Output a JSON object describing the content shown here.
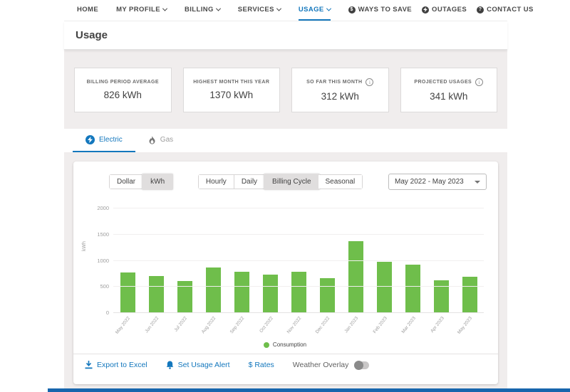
{
  "colors": {
    "accent_blue": "#1377bd",
    "bar_green": "#6fbe4b",
    "bg_gray": "#f0eded",
    "footer_bar_blue": "#1866ad"
  },
  "nav": {
    "items": [
      {
        "label": "HOME",
        "caret": false,
        "active": false
      },
      {
        "label": "MY PROFILE",
        "caret": true,
        "active": false
      },
      {
        "label": "BILLING",
        "caret": true,
        "active": false
      },
      {
        "label": "SERVICES",
        "caret": true,
        "active": false
      },
      {
        "label": "USAGE",
        "caret": true,
        "active": true
      }
    ],
    "utility": [
      {
        "label": "WAYS TO SAVE",
        "icon": "dollar-circle-icon"
      },
      {
        "label": "OUTAGES",
        "icon": "power-circle-icon"
      },
      {
        "label": "CONTACT US",
        "icon": "question-circle-icon"
      }
    ]
  },
  "page": {
    "title": "Usage"
  },
  "stats": [
    {
      "label": "BILLING PERIOD AVERAGE",
      "value": "826 kWh",
      "has_info": false
    },
    {
      "label": "HIGHEST MONTH THIS YEAR",
      "value": "1370 kWh",
      "has_info": false
    },
    {
      "label": "SO FAR THIS MONTH",
      "value": "312 kWh",
      "has_info": true
    },
    {
      "label": "PROJECTED USAGES",
      "value": "341 kWh",
      "has_info": true
    }
  ],
  "fuel_tabs": [
    {
      "label": "Electric",
      "active": true
    },
    {
      "label": "Gas",
      "active": false
    }
  ],
  "controls": {
    "unit_options": [
      {
        "label": "Dollar",
        "selected": false
      },
      {
        "label": "kWh",
        "selected": true
      }
    ],
    "period_options": [
      {
        "label": "Hourly",
        "selected": false
      },
      {
        "label": "Daily",
        "selected": false
      },
      {
        "label": "Billing Cycle",
        "selected": true
      },
      {
        "label": "Seasonal",
        "selected": false
      }
    ],
    "date_range": {
      "value": "May 2022 - May 2023"
    }
  },
  "chart_data": {
    "type": "bar",
    "title": "",
    "xlabel": "",
    "ylabel": "kWh",
    "ylim": [
      0,
      2000
    ],
    "yticks": [
      0,
      500,
      1000,
      1500,
      2000
    ],
    "grid": true,
    "legend_position": "bottom",
    "categories": [
      "May 2022",
      "Jun 2022",
      "Jul 2022",
      "Aug 2022",
      "Sep 2022",
      "Oct 2022",
      "Nov 2022",
      "Dec 2022",
      "Jan 2023",
      "Feb 2023",
      "Mar 2023",
      "Apr 2023",
      "May 2023"
    ],
    "series": [
      {
        "name": "Consumption",
        "color": "#6fbe4b",
        "values": [
          780,
          710,
          610,
          870,
          790,
          740,
          790,
          670,
          1370,
          980,
          920,
          630,
          700
        ]
      }
    ]
  },
  "footer": {
    "export_label": "Export to Excel",
    "alert_label": "Set Usage Alert",
    "rates_label": "$ Rates",
    "weather_label": "Weather Overlay",
    "weather_on": false
  }
}
